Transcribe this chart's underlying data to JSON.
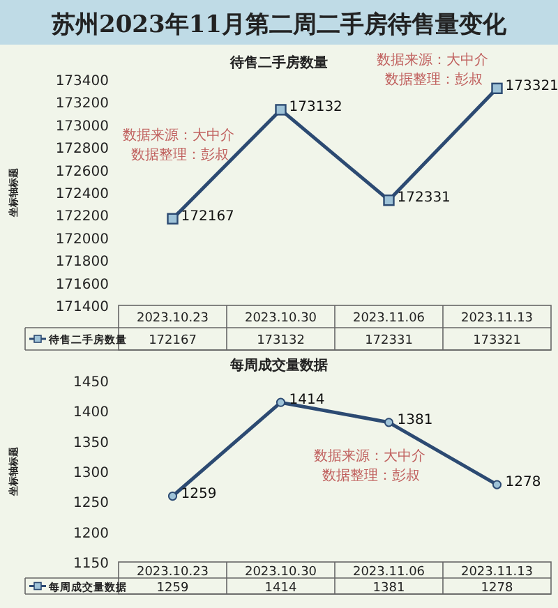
{
  "chart_data": [
    {
      "type": "line",
      "title": "苏州2023年11月第二周二手房待售量变化",
      "subtitle": "待售二手房数量",
      "ylabel": "坐标轴标题",
      "categories": [
        "2023.10.23",
        "2023.10.30",
        "2023.11.06",
        "2023.11.13"
      ],
      "series": [
        {
          "name": "待售二手房数量",
          "color": "#2c4a72",
          "values": [
            172167,
            173132,
            172331,
            173321
          ]
        }
      ],
      "ylim": [
        171400,
        173400
      ],
      "yticks": [
        171400,
        171600,
        171800,
        172000,
        172200,
        172400,
        172600,
        172800,
        173000,
        173200,
        173400
      ],
      "data_labels": true,
      "marker": "square",
      "line_style": "solid",
      "grid": false,
      "legend": "bottom left",
      "annotations": [
        "数据来源：大中介",
        "数据整理：彭叔",
        "数据来源：大中介",
        "数据整理：彭叔",
        "172167",
        "173132",
        "172331",
        "173321"
      ]
    },
    {
      "type": "line",
      "title": "每周成交量数据",
      "ylabel": "坐标轴标题",
      "categories": [
        "2023.10.23",
        "2023.10.30",
        "2023.11.06",
        "2023.11.13"
      ],
      "series": [
        {
          "name": "每周成交量数据",
          "color": "#2c4a72",
          "values": [
            1259,
            1414,
            1381,
            1278
          ]
        }
      ],
      "ylim": [
        1150,
        1450
      ],
      "yticks": [
        1150,
        1200,
        1250,
        1300,
        1350,
        1400,
        1450
      ],
      "data_labels": true,
      "marker": "circle",
      "line_style": "solid",
      "grid": false,
      "legend": "bottom left",
      "annotations": [
        "数据来源：大中介",
        "数据整理：彭叔",
        "1259",
        "1414",
        "1381",
        "1278"
      ]
    }
  ]
}
